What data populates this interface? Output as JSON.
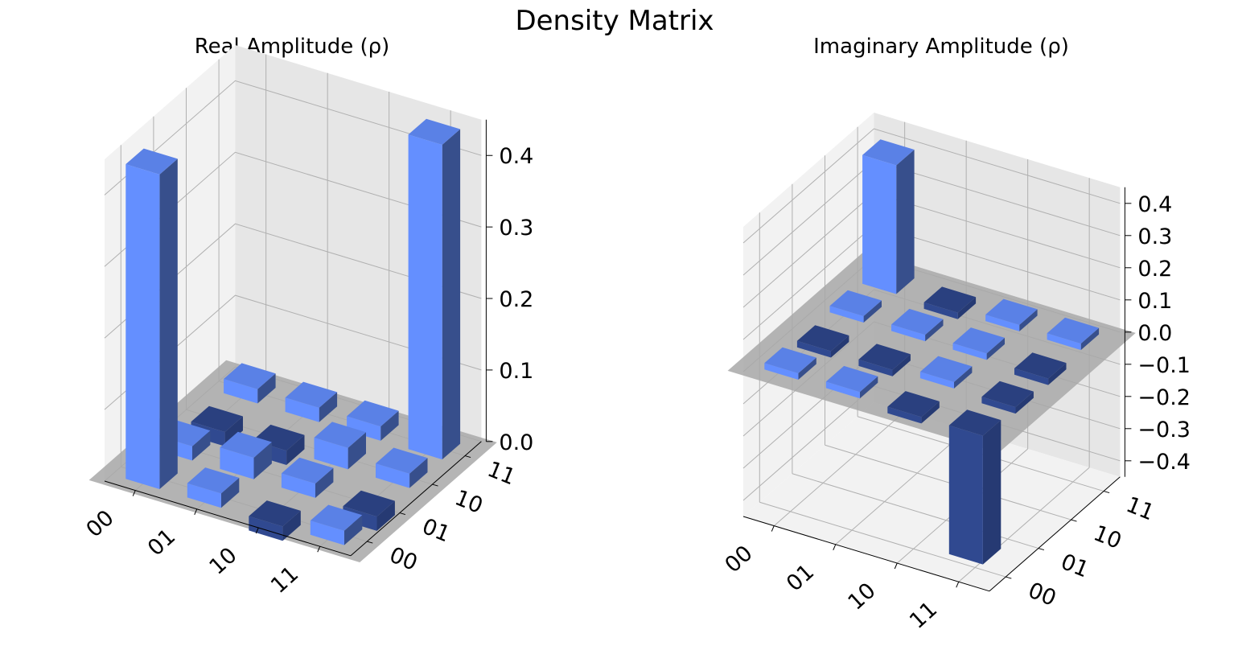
{
  "figure": {
    "title": "Density Matrix"
  },
  "chart_data": [
    {
      "type": "bar3d",
      "title": "Real Amplitude (ρ)",
      "row_labels": [
        "00",
        "01",
        "10",
        "11"
      ],
      "col_labels": [
        "00",
        "01",
        "10",
        "11"
      ],
      "zlim": [
        0.0,
        0.45
      ],
      "z_ticks": [
        "0.0",
        "0.1",
        "0.2",
        "0.3",
        "0.4"
      ],
      "values": [
        [
          0.44,
          0.02,
          -0.02,
          0.02
        ],
        [
          0.02,
          0.03,
          -0.02,
          0.02
        ],
        [
          -0.02,
          0.02,
          0.03,
          0.02
        ],
        [
          0.02,
          -0.02,
          0.02,
          0.44
        ]
      ],
      "colors": {
        "light": "#648fff",
        "dark": "#263a73"
      },
      "grid": true
    },
    {
      "type": "bar3d",
      "title": "Imaginary Amplitude (ρ)",
      "row_labels": [
        "00",
        "01",
        "10",
        "11"
      ],
      "col_labels": [
        "00",
        "01",
        "10",
        "11"
      ],
      "zlim": [
        -0.45,
        0.45
      ],
      "z_ticks": [
        "0.4",
        "0.3",
        "0.2",
        "0.1",
        "0.0",
        "−0.1",
        "−0.2",
        "−0.3",
        "−0.4"
      ],
      "values": [
        [
          0.0,
          -0.02,
          0.02,
          0.4
        ],
        [
          0.02,
          -0.02,
          0.02,
          -0.02
        ],
        [
          -0.02,
          0.02,
          0.02,
          0.02
        ],
        [
          -0.4,
          -0.02,
          -0.02,
          0.0
        ]
      ],
      "colors": {
        "light": "#648fff",
        "dark": "#263a73"
      },
      "grid": true
    }
  ]
}
